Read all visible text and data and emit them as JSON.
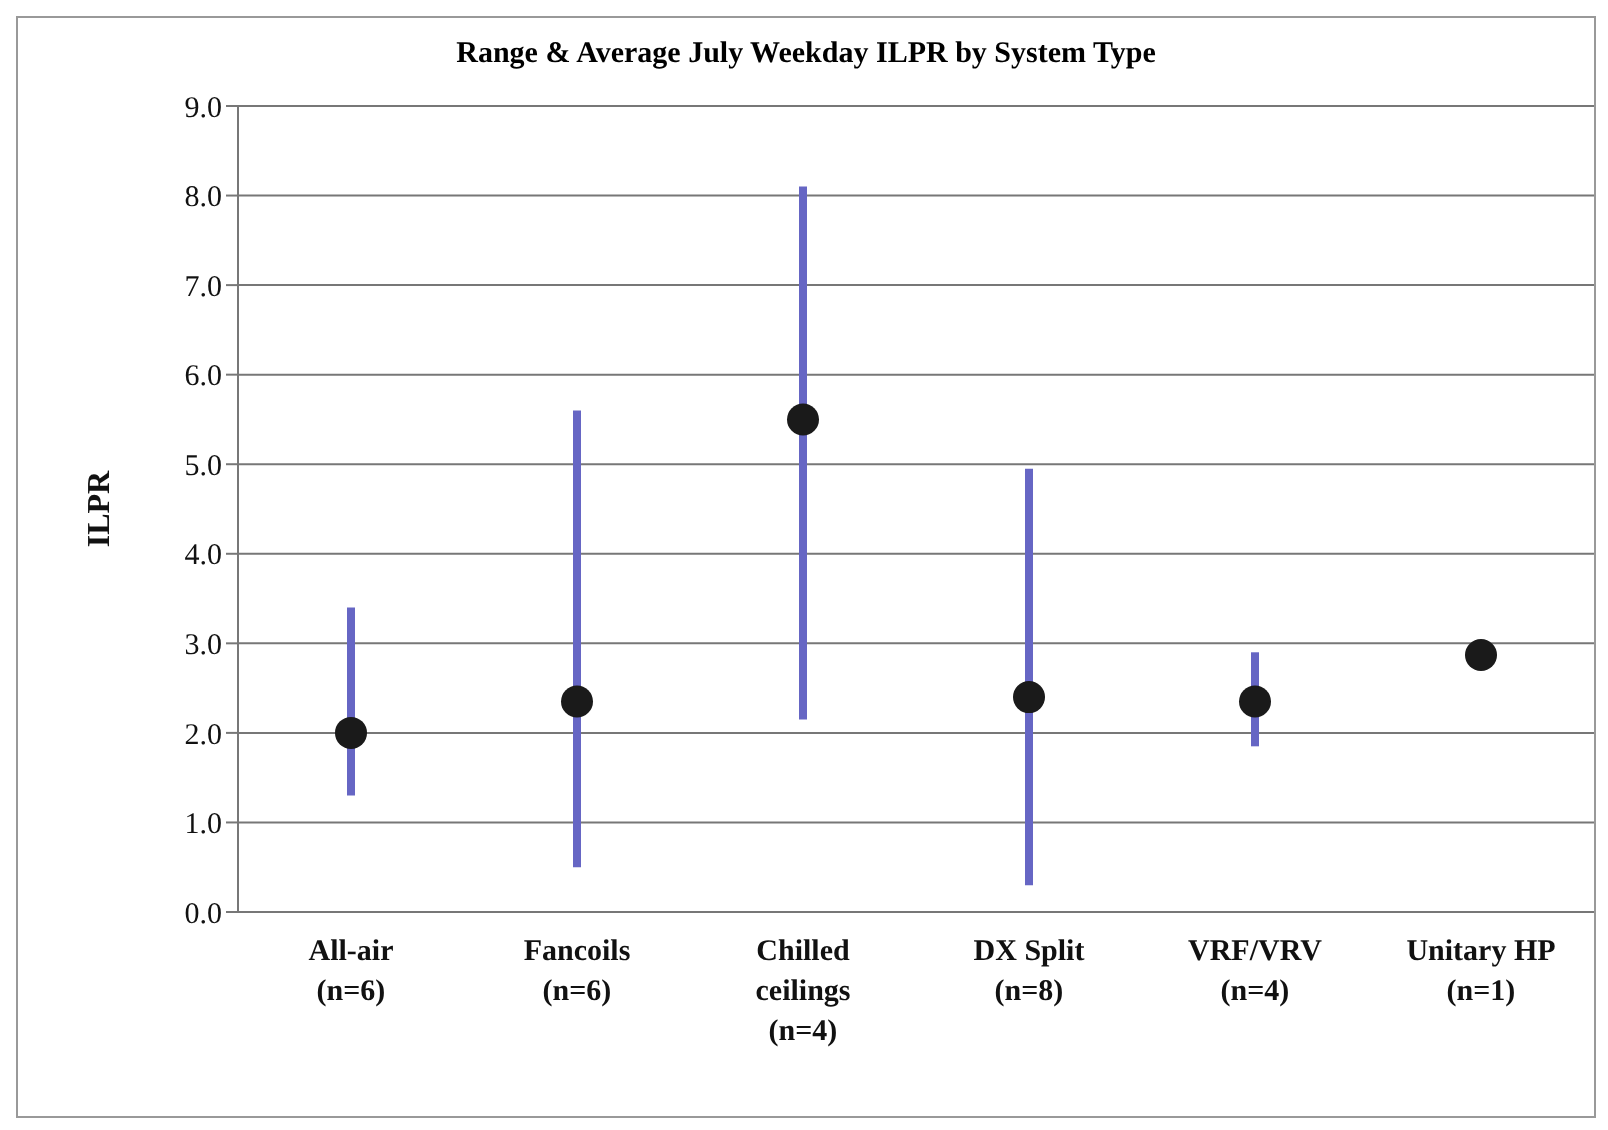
{
  "chart_data": {
    "type": "scatter",
    "title": "Range & Average July Weekday ILPR by System Type",
    "ylabel": "ILPR",
    "categories": [
      "All-air\n(n=6)",
      "Fancoils\n(n=6)",
      "Chilled\nceilings\n(n=4)",
      "DX Split\n(n=8)",
      "VRF/VRV\n(n=4)",
      "Unitary HP\n(n=1)"
    ],
    "series": [
      {
        "color": "#1a1a1a",
        "values": [
          2.0,
          2.35,
          5.5,
          2.4,
          2.35,
          2.87
        ],
        "errors": [
          [
            1.3,
            3.4
          ],
          [
            0.5,
            5.6
          ],
          [
            2.15,
            8.1
          ],
          [
            0.3,
            4.95
          ],
          [
            1.85,
            2.9
          ],
          null
        ]
      }
    ],
    "ylim": [
      0,
      9
    ],
    "yticks": [
      {
        "value": 0,
        "label": "0.0"
      },
      {
        "value": 1,
        "label": "1.0"
      },
      {
        "value": 2,
        "label": "2.0"
      },
      {
        "value": 3,
        "label": "3.0"
      },
      {
        "value": 4,
        "label": "4.0"
      },
      {
        "value": 5,
        "label": "5.0"
      },
      {
        "value": 6,
        "label": "6.0"
      },
      {
        "value": 7,
        "label": "7.0"
      },
      {
        "value": 8,
        "label": "8.0"
      },
      {
        "value": 9,
        "label": "9.0"
      }
    ],
    "grid": "y",
    "legend": false,
    "marker": "circle"
  }
}
